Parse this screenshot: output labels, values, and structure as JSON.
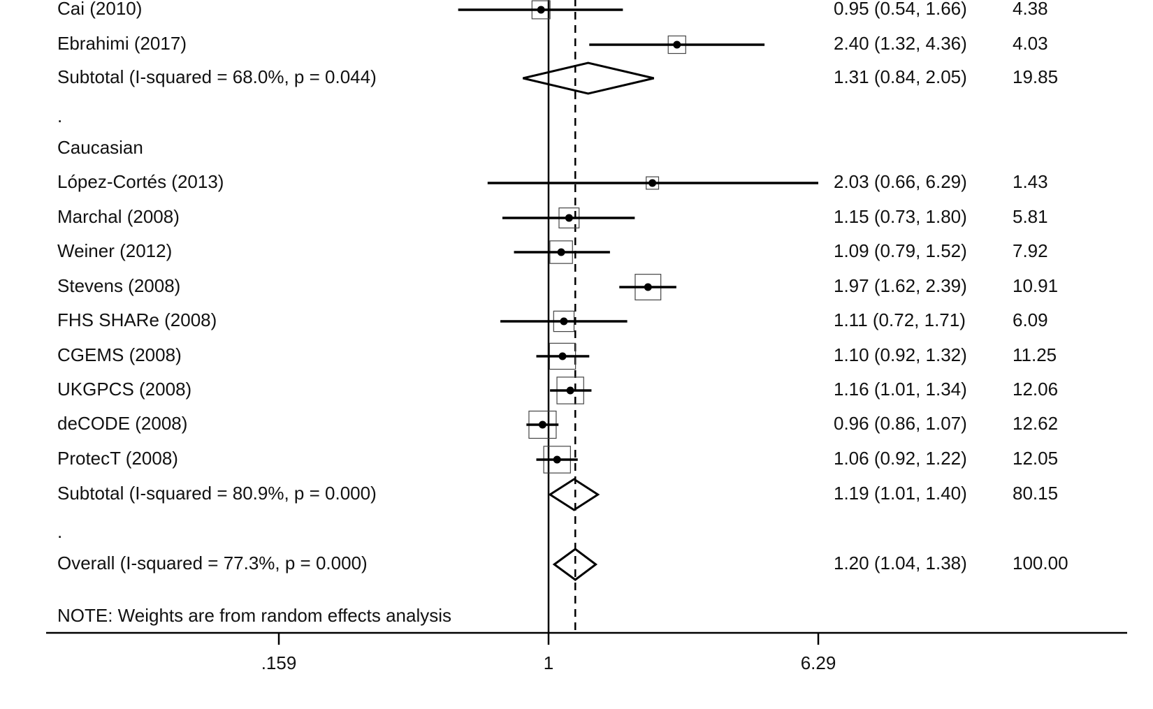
{
  "chart_data": {
    "type": "forest",
    "x_scale": "log",
    "null_value": 1,
    "overall_estimate": 1.2,
    "x_ticks": [
      {
        "value": 0.159,
        "label": ".159"
      },
      {
        "value": 1,
        "label": "1"
      },
      {
        "value": 6.29,
        "label": "6.29"
      }
    ],
    "rows": [
      {
        "kind": "study",
        "label": "Cai (2010)",
        "or": 0.95,
        "lo": 0.54,
        "hi": 1.66,
        "ci_text": "0.95 (0.54, 1.66)",
        "weight": 4.38,
        "weight_text": "4.38"
      },
      {
        "kind": "study",
        "label": "Ebrahimi (2017)",
        "or": 2.4,
        "lo": 1.32,
        "hi": 4.36,
        "ci_text": "2.40 (1.32, 4.36)",
        "weight": 4.03,
        "weight_text": "4.03"
      },
      {
        "kind": "subtotal",
        "label": "Subtotal  (I-squared = 68.0%, p = 0.044)",
        "or": 1.31,
        "lo": 0.84,
        "hi": 2.05,
        "ci_text": "1.31 (0.84, 2.05)",
        "weight": 19.85,
        "weight_text": "19.85"
      },
      {
        "kind": "text",
        "label": "."
      },
      {
        "kind": "text",
        "label": "Caucasian"
      },
      {
        "kind": "study",
        "label": "López-Cortés (2013)",
        "or": 2.03,
        "lo": 0.66,
        "hi": 6.29,
        "ci_text": "2.03 (0.66, 6.29)",
        "weight": 1.43,
        "weight_text": "1.43"
      },
      {
        "kind": "study",
        "label": "Marchal (2008)",
        "or": 1.15,
        "lo": 0.73,
        "hi": 1.8,
        "ci_text": "1.15 (0.73, 1.80)",
        "weight": 5.81,
        "weight_text": "5.81"
      },
      {
        "kind": "study",
        "label": "Weiner (2012)",
        "or": 1.09,
        "lo": 0.79,
        "hi": 1.52,
        "ci_text": "1.09 (0.79, 1.52)",
        "weight": 7.92,
        "weight_text": "7.92"
      },
      {
        "kind": "study",
        "label": "Stevens (2008)",
        "or": 1.97,
        "lo": 1.62,
        "hi": 2.39,
        "ci_text": "1.97 (1.62, 2.39)",
        "weight": 10.91,
        "weight_text": "10.91"
      },
      {
        "kind": "study",
        "label": "FHS SHARe (2008)",
        "or": 1.11,
        "lo": 0.72,
        "hi": 1.71,
        "ci_text": "1.11 (0.72, 1.71)",
        "weight": 6.09,
        "weight_text": "6.09"
      },
      {
        "kind": "study",
        "label": "CGEMS (2008)",
        "or": 1.1,
        "lo": 0.92,
        "hi": 1.32,
        "ci_text": "1.10 (0.92, 1.32)",
        "weight": 11.25,
        "weight_text": "11.25"
      },
      {
        "kind": "study",
        "label": "UKGPCS (2008)",
        "or": 1.16,
        "lo": 1.01,
        "hi": 1.34,
        "ci_text": "1.16 (1.01, 1.34)",
        "weight": 12.06,
        "weight_text": "12.06"
      },
      {
        "kind": "study",
        "label": "deCODE (2008)",
        "or": 0.96,
        "lo": 0.86,
        "hi": 1.07,
        "ci_text": "0.96 (0.86, 1.07)",
        "weight": 12.62,
        "weight_text": "12.62"
      },
      {
        "kind": "study",
        "label": "ProtecT (2008)",
        "or": 1.06,
        "lo": 0.92,
        "hi": 1.22,
        "ci_text": "1.06 (0.92, 1.22)",
        "weight": 12.05,
        "weight_text": "12.05"
      },
      {
        "kind": "subtotal",
        "label": "Subtotal  (I-squared = 80.9%, p = 0.000)",
        "or": 1.19,
        "lo": 1.01,
        "hi": 1.4,
        "ci_text": "1.19 (1.01, 1.40)",
        "weight": 80.15,
        "weight_text": "80.15"
      },
      {
        "kind": "text",
        "label": "."
      },
      {
        "kind": "overall",
        "label": "Overall  (I-squared = 77.3%, p = 0.000)",
        "or": 1.2,
        "lo": 1.04,
        "hi": 1.38,
        "ci_text": "1.20 (1.04, 1.38)",
        "weight": 100.0,
        "weight_text": "100.00"
      },
      {
        "kind": "note",
        "label": "NOTE: Weights are from random effects analysis"
      }
    ]
  }
}
